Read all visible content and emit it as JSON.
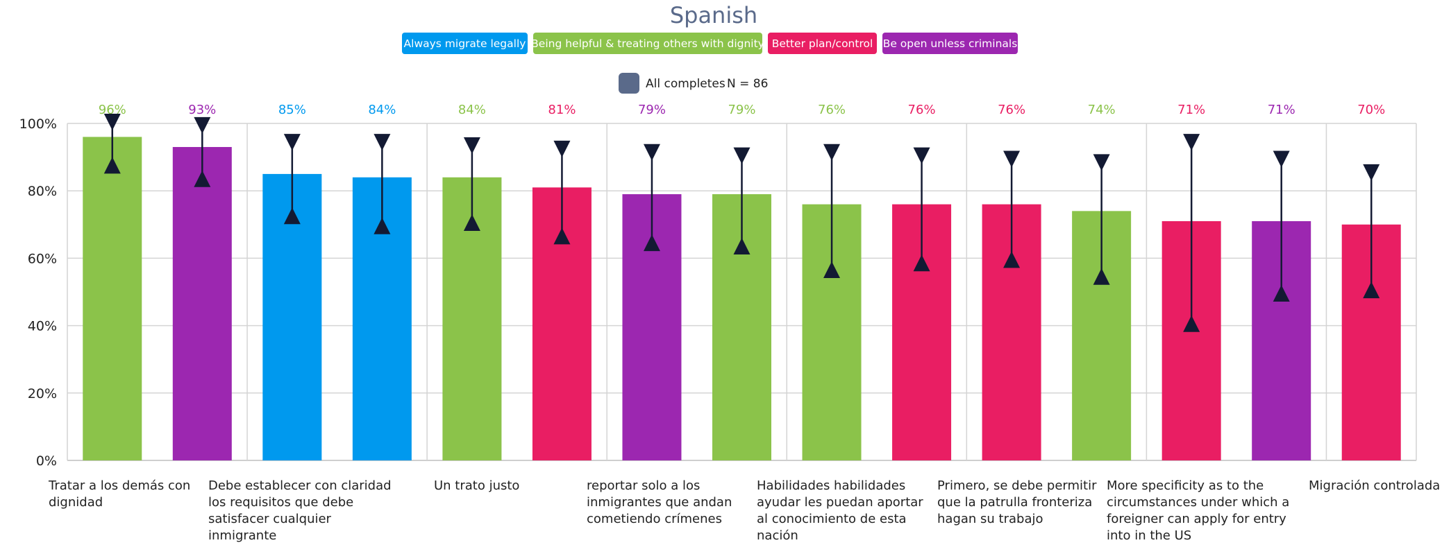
{
  "chart_data": {
    "type": "bar",
    "title": "Spanish",
    "category_legend": [
      {
        "label": "Always migrate legally",
        "color": "#0099ee"
      },
      {
        "label": "Being helpful & treating others with dignity",
        "color": "#8bc34a"
      },
      {
        "label": "Better plan/control",
        "color": "#e91e63"
      },
      {
        "label": "Be open unless criminals",
        "color": "#9c27b0"
      }
    ],
    "series_legend": {
      "label": "All completes",
      "n_label": "N = 86",
      "color": "#5a6a8a"
    },
    "ylim": [
      0,
      100
    ],
    "yticks": [
      "0%",
      "20%",
      "40%",
      "60%",
      "80%",
      "100%"
    ],
    "ytick_values": [
      0,
      20,
      40,
      60,
      80,
      100
    ],
    "grid": true,
    "bars": [
      {
        "value": 96,
        "label": "96%",
        "group": 1,
        "err_low": 88,
        "err_high": 100
      },
      {
        "value": 93,
        "label": "93%",
        "group": 3,
        "err_low": 84,
        "err_high": 99
      },
      {
        "value": 85,
        "label": "85%",
        "group": 0,
        "err_low": 73,
        "err_high": 94
      },
      {
        "value": 84,
        "label": "84%",
        "group": 0,
        "err_low": 70,
        "err_high": 94
      },
      {
        "value": 84,
        "label": "84%",
        "group": 1,
        "err_low": 71,
        "err_high": 93
      },
      {
        "value": 81,
        "label": "81%",
        "group": 2,
        "err_low": 67,
        "err_high": 92
      },
      {
        "value": 79,
        "label": "79%",
        "group": 3,
        "err_low": 65,
        "err_high": 91
      },
      {
        "value": 79,
        "label": "79%",
        "group": 1,
        "err_low": 64,
        "err_high": 90
      },
      {
        "value": 76,
        "label": "76%",
        "group": 1,
        "err_low": 57,
        "err_high": 91
      },
      {
        "value": 76,
        "label": "76%",
        "group": 2,
        "err_low": 59,
        "err_high": 90
      },
      {
        "value": 76,
        "label": "76%",
        "group": 2,
        "err_low": 60,
        "err_high": 89
      },
      {
        "value": 74,
        "label": "74%",
        "group": 1,
        "err_low": 55,
        "err_high": 88
      },
      {
        "value": 71,
        "label": "71%",
        "group": 2,
        "err_low": 41,
        "err_high": 94
      },
      {
        "value": 71,
        "label": "71%",
        "group": 3,
        "err_low": 50,
        "err_high": 89
      },
      {
        "value": 70,
        "label": "70%",
        "group": 2,
        "err_low": 51,
        "err_high": 85
      }
    ],
    "x_labels": [
      {
        "lines": [
          "Tratar a los demás con",
          "dignidad"
        ]
      },
      {
        "lines": [
          "Debe establecer con claridad",
          "los requisitos que debe",
          "satisfacer cualquier",
          "inmigrante"
        ]
      },
      {
        "lines": [
          "Un trato justo"
        ]
      },
      {
        "lines": [
          "reportar solo a los",
          "inmigrantes que andan",
          "cometiendo crímenes"
        ]
      },
      {
        "lines": [
          "Habilidades habilidades",
          "ayudar les puedan aportar",
          "al conocimiento de esta",
          "nación"
        ]
      },
      {
        "lines": [
          "Primero, se debe permitir",
          "que la patrulla fronteriza",
          "hagan su trabajo"
        ]
      },
      {
        "lines": [
          "More specificity as to the",
          "circumstances under which a",
          "foreigner can apply for entry",
          "into in the US"
        ]
      },
      {
        "lines": [
          "Migración controlada"
        ]
      }
    ]
  }
}
